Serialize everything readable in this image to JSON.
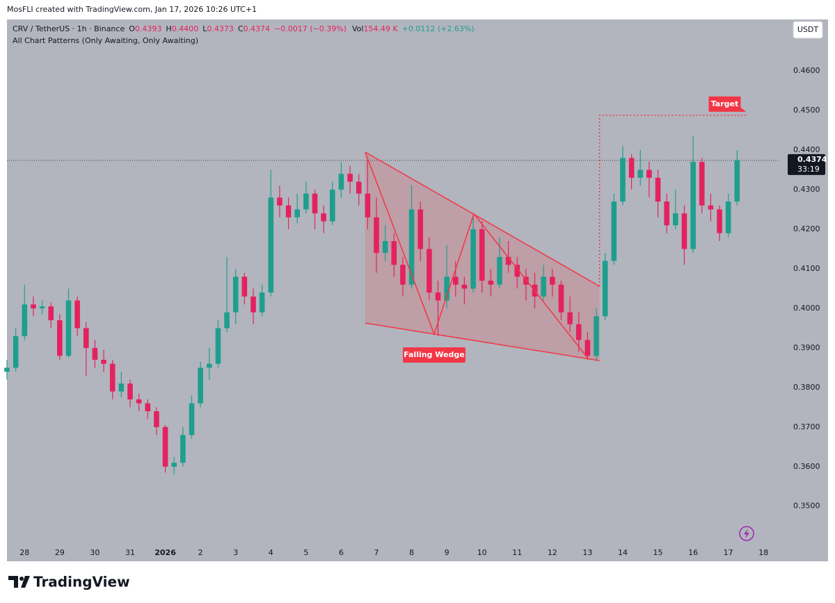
{
  "header": "MosFLI created with TradingView.com, Jan 17, 2026 10:26 UTC+1",
  "symbol": "CRV / TetherUS · 1h · Binance",
  "ohlc_legend": [
    {
      "key": "O",
      "value": "0.4393"
    },
    {
      "key": "H",
      "value": "0.4400"
    },
    {
      "key": "L",
      "value": "0.4373"
    },
    {
      "key": "C",
      "value": "0.4374"
    }
  ],
  "change": "−0.0017 (−0.39%)",
  "volume": {
    "key": "Vol",
    "value": "154.49 K"
  },
  "day_change": "+0.0112 (+2.63%)",
  "indicator": "All Chart Patterns (Only Awaiting, Only Awaiting)",
  "currency": "USDT",
  "brand": "TradingView",
  "chart_data": {
    "type": "candlestick",
    "up_color": "#1f9e8e",
    "down_color": "#e3225f",
    "xlim": [
      -0.5,
      21.45
    ],
    "ylim": [
      0.3396,
      0.473
    ],
    "xticks": [
      {
        "value": 0,
        "label": "28"
      },
      {
        "value": 1,
        "label": "29"
      },
      {
        "value": 2,
        "label": "30"
      },
      {
        "value": 3,
        "label": "31"
      },
      {
        "value": 4,
        "label": "2026"
      },
      {
        "value": 5,
        "label": "2"
      },
      {
        "value": 6,
        "label": "3"
      },
      {
        "value": 7,
        "label": "4"
      },
      {
        "value": 8,
        "label": "5"
      },
      {
        "value": 9,
        "label": "6"
      },
      {
        "value": 10,
        "label": "7"
      },
      {
        "value": 11,
        "label": "8"
      },
      {
        "value": 12,
        "label": "9"
      },
      {
        "value": 13,
        "label": "10"
      },
      {
        "value": 14,
        "label": "11"
      },
      {
        "value": 15,
        "label": "12"
      },
      {
        "value": 16,
        "label": "13"
      },
      {
        "value": 17,
        "label": "14"
      },
      {
        "value": 18,
        "label": "15"
      },
      {
        "value": 19,
        "label": "16"
      },
      {
        "value": 20,
        "label": "17"
      },
      {
        "value": 21,
        "label": "18"
      }
    ],
    "yticks": [
      {
        "value": 0.35,
        "label": "0.3500"
      },
      {
        "value": 0.36,
        "label": "0.3600"
      },
      {
        "value": 0.37,
        "label": "0.3700"
      },
      {
        "value": 0.38,
        "label": "0.3800"
      },
      {
        "value": 0.39,
        "label": "0.3900"
      },
      {
        "value": 0.4,
        "label": "0.4000"
      },
      {
        "value": 0.41,
        "label": "0.4100"
      },
      {
        "value": 0.42,
        "label": "0.4200"
      },
      {
        "value": 0.43,
        "label": "0.4300"
      },
      {
        "value": 0.44,
        "label": "0.4400"
      },
      {
        "value": 0.45,
        "label": "0.4500"
      },
      {
        "value": 0.46,
        "label": "0.4600"
      }
    ],
    "grid": false,
    "x": [
      -0.5,
      -0.25,
      0,
      0.25,
      0.5,
      0.75,
      1,
      1.25,
      1.5,
      1.75,
      2,
      2.25,
      2.5,
      2.75,
      3,
      3.25,
      3.5,
      3.75,
      4,
      4.25,
      4.5,
      4.75,
      5,
      5.25,
      5.5,
      5.75,
      6,
      6.25,
      6.5,
      6.75,
      7,
      7.25,
      7.5,
      7.75,
      8,
      8.25,
      8.5,
      8.75,
      9,
      9.25,
      9.5,
      9.75,
      10,
      10.25,
      10.5,
      10.75,
      11,
      11.25,
      11.5,
      11.75,
      12,
      12.25,
      12.5,
      12.75,
      13,
      13.25,
      13.5,
      13.75,
      14,
      14.25,
      14.5,
      14.75,
      15,
      15.25,
      15.5,
      15.75,
      16,
      16.25,
      16.5,
      16.75,
      17,
      17.25,
      17.5,
      17.75,
      18,
      18.25,
      18.5,
      18.75,
      19,
      19.25,
      19.5,
      19.75,
      20,
      20.25
    ],
    "ohlc": [
      [
        0.384,
        0.387,
        0.382,
        0.385
      ],
      [
        0.385,
        0.395,
        0.384,
        0.393
      ],
      [
        0.393,
        0.406,
        0.392,
        0.401
      ],
      [
        0.401,
        0.403,
        0.398,
        0.4
      ],
      [
        0.4,
        0.402,
        0.3985,
        0.4005
      ],
      [
        0.4005,
        0.4015,
        0.395,
        0.397
      ],
      [
        0.397,
        0.3985,
        0.387,
        0.388
      ],
      [
        0.388,
        0.405,
        0.3875,
        0.402
      ],
      [
        0.402,
        0.403,
        0.393,
        0.395
      ],
      [
        0.395,
        0.3965,
        0.383,
        0.39
      ],
      [
        0.39,
        0.392,
        0.385,
        0.387
      ],
      [
        0.387,
        0.3895,
        0.384,
        0.386
      ],
      [
        0.386,
        0.387,
        0.377,
        0.379
      ],
      [
        0.379,
        0.384,
        0.3775,
        0.381
      ],
      [
        0.381,
        0.382,
        0.375,
        0.377
      ],
      [
        0.377,
        0.3785,
        0.374,
        0.376
      ],
      [
        0.376,
        0.377,
        0.372,
        0.374
      ],
      [
        0.374,
        0.375,
        0.368,
        0.37
      ],
      [
        0.37,
        0.3705,
        0.3585,
        0.36
      ],
      [
        0.36,
        0.3625,
        0.358,
        0.361
      ],
      [
        0.361,
        0.37,
        0.36,
        0.368
      ],
      [
        0.368,
        0.378,
        0.367,
        0.376
      ],
      [
        0.376,
        0.3865,
        0.375,
        0.385
      ],
      [
        0.385,
        0.39,
        0.382,
        0.386
      ],
      [
        0.386,
        0.397,
        0.385,
        0.395
      ],
      [
        0.395,
        0.413,
        0.394,
        0.399
      ],
      [
        0.399,
        0.41,
        0.396,
        0.408
      ],
      [
        0.408,
        0.409,
        0.401,
        0.403
      ],
      [
        0.403,
        0.405,
        0.396,
        0.399
      ],
      [
        0.399,
        0.406,
        0.398,
        0.404
      ],
      [
        0.404,
        0.435,
        0.403,
        0.428
      ],
      [
        0.428,
        0.431,
        0.423,
        0.426
      ],
      [
        0.426,
        0.428,
        0.42,
        0.423
      ],
      [
        0.423,
        0.429,
        0.4215,
        0.425
      ],
      [
        0.425,
        0.432,
        0.424,
        0.429
      ],
      [
        0.429,
        0.43,
        0.42,
        0.424
      ],
      [
        0.424,
        0.426,
        0.419,
        0.422
      ],
      [
        0.422,
        0.432,
        0.421,
        0.43
      ],
      [
        0.43,
        0.437,
        0.428,
        0.434
      ],
      [
        0.434,
        0.436,
        0.429,
        0.432
      ],
      [
        0.432,
        0.434,
        0.426,
        0.429
      ],
      [
        0.429,
        0.438,
        0.42,
        0.423
      ],
      [
        0.423,
        0.428,
        0.409,
        0.414
      ],
      [
        0.414,
        0.421,
        0.412,
        0.417
      ],
      [
        0.417,
        0.419,
        0.408,
        0.411
      ],
      [
        0.411,
        0.413,
        0.403,
        0.406
      ],
      [
        0.406,
        0.431,
        0.405,
        0.425
      ],
      [
        0.425,
        0.427,
        0.412,
        0.415
      ],
      [
        0.415,
        0.418,
        0.402,
        0.404
      ],
      [
        0.404,
        0.407,
        0.393,
        0.402
      ],
      [
        0.402,
        0.416,
        0.4,
        0.408
      ],
      [
        0.408,
        0.412,
        0.403,
        0.406
      ],
      [
        0.406,
        0.408,
        0.401,
        0.405
      ],
      [
        0.405,
        0.423,
        0.404,
        0.42
      ],
      [
        0.42,
        0.422,
        0.404,
        0.407
      ],
      [
        0.407,
        0.41,
        0.403,
        0.406
      ],
      [
        0.406,
        0.418,
        0.405,
        0.413
      ],
      [
        0.413,
        0.417,
        0.409,
        0.411
      ],
      [
        0.411,
        0.413,
        0.405,
        0.408
      ],
      [
        0.408,
        0.41,
        0.402,
        0.406
      ],
      [
        0.406,
        0.409,
        0.4,
        0.403
      ],
      [
        0.403,
        0.411,
        0.402,
        0.408
      ],
      [
        0.408,
        0.41,
        0.403,
        0.406
      ],
      [
        0.406,
        0.407,
        0.397,
        0.399
      ],
      [
        0.399,
        0.403,
        0.394,
        0.396
      ],
      [
        0.396,
        0.399,
        0.389,
        0.392
      ],
      [
        0.392,
        0.394,
        0.387,
        0.388
      ],
      [
        0.388,
        0.4,
        0.387,
        0.398
      ],
      [
        0.398,
        0.414,
        0.397,
        0.412
      ],
      [
        0.412,
        0.429,
        0.411,
        0.427
      ],
      [
        0.427,
        0.441,
        0.426,
        0.438
      ],
      [
        0.438,
        0.439,
        0.43,
        0.433
      ],
      [
        0.433,
        0.44,
        0.431,
        0.435
      ],
      [
        0.435,
        0.437,
        0.428,
        0.433
      ],
      [
        0.433,
        0.435,
        0.423,
        0.427
      ],
      [
        0.427,
        0.429,
        0.419,
        0.421
      ],
      [
        0.421,
        0.43,
        0.42,
        0.424
      ],
      [
        0.424,
        0.426,
        0.411,
        0.415
      ],
      [
        0.415,
        0.4435,
        0.414,
        0.437
      ],
      [
        0.437,
        0.438,
        0.424,
        0.426
      ],
      [
        0.426,
        0.429,
        0.422,
        0.425
      ],
      [
        0.425,
        0.426,
        0.417,
        0.419
      ],
      [
        0.419,
        0.429,
        0.418,
        0.427
      ],
      [
        0.427,
        0.44,
        0.426,
        0.4374
      ]
    ],
    "last_price": 0.4374,
    "countdown": "33:19",
    "pattern": {
      "label": "Falling Wedge",
      "color": "#f23645",
      "upper": {
        "x": [
          9.68,
          16.34
        ],
        "y": [
          0.4395,
          0.4056
        ]
      },
      "lower": {
        "x": [
          9.68,
          16.34
        ],
        "y": [
          0.3963,
          0.3868
        ]
      },
      "zigzag": {
        "x": [
          9.68,
          11.64,
          12.77,
          16.01
        ],
        "y": [
          0.4395,
          0.3935,
          0.4239,
          0.3874
        ]
      }
    },
    "target": {
      "label": "Target",
      "x": [
        16.34,
        16.34,
        20.55
      ],
      "y": [
        0.4056,
        0.4488,
        0.4488
      ]
    }
  }
}
